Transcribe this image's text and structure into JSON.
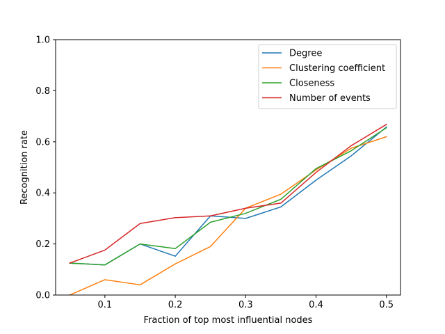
{
  "chart_data": {
    "type": "line",
    "title": "",
    "xlabel": "Fraction of top most influential nodes",
    "ylabel": "Recognition rate",
    "xlim": [
      0.03,
      0.52
    ],
    "ylim": [
      0,
      1.0
    ],
    "xticks": [
      0.1,
      0.2,
      0.3,
      0.4,
      0.5
    ],
    "xtick_labels": [
      "0.1",
      "0.2",
      "0.3",
      "0.4",
      "0.5"
    ],
    "yticks": [
      0.0,
      0.2,
      0.4,
      0.6,
      0.8,
      1.0
    ],
    "ytick_labels": [
      "0.0",
      "0.2",
      "0.4",
      "0.6",
      "0.8",
      "1.0"
    ],
    "grid": false,
    "legend_position": "top-right",
    "x": [
      0.05,
      0.1,
      0.15,
      0.2,
      0.25,
      0.3,
      0.35,
      0.4,
      0.45,
      0.5
    ],
    "series": [
      {
        "name": "Degree",
        "color": "#1f77b4",
        "values": [
          0.125,
          0.118,
          0.2,
          0.152,
          0.31,
          0.3,
          0.345,
          0.45,
          0.545,
          0.658
        ]
      },
      {
        "name": "Clustering coefficient",
        "color": "#ff7f0e",
        "values": [
          0.0,
          0.06,
          0.04,
          0.122,
          0.19,
          0.34,
          0.395,
          0.49,
          0.575,
          0.62
        ]
      },
      {
        "name": "Closeness",
        "color": "#2ca02c",
        "values": [
          0.125,
          0.118,
          0.2,
          0.182,
          0.285,
          0.32,
          0.375,
          0.495,
          0.565,
          0.655
        ]
      },
      {
        "name": "Number of events",
        "color": "#d62728",
        "values": [
          0.125,
          0.176,
          0.28,
          0.303,
          0.31,
          0.34,
          0.36,
          0.48,
          0.585,
          0.668
        ]
      }
    ]
  }
}
